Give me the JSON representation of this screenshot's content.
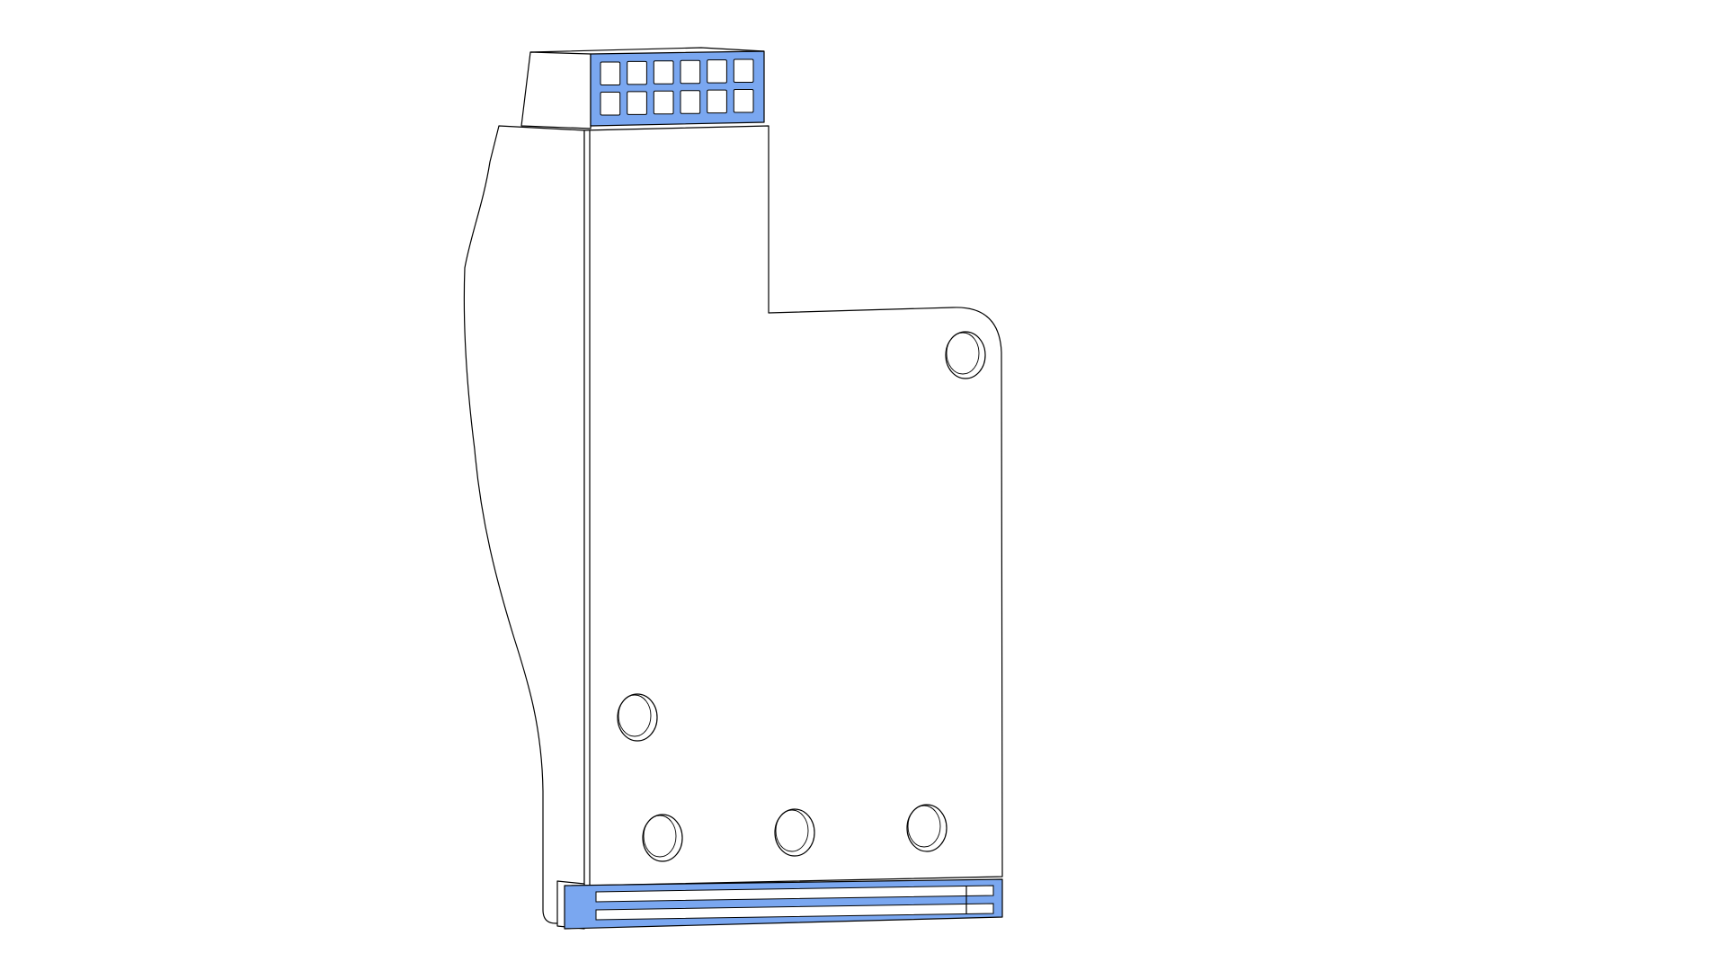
{
  "viewport": {
    "background_color": "#ffffff"
  },
  "part": {
    "body_color": "#ffffff",
    "edge_color": "#000000",
    "highlight_color": "#7aa7f0",
    "highlighted_faces": [
      "top-connector-face",
      "bottom-rail-face"
    ]
  },
  "top_connector": {
    "rows": 2,
    "columns": 6
  },
  "bottom_rail": {
    "slot_count": 2
  },
  "mounting_holes": {
    "count": 5
  }
}
